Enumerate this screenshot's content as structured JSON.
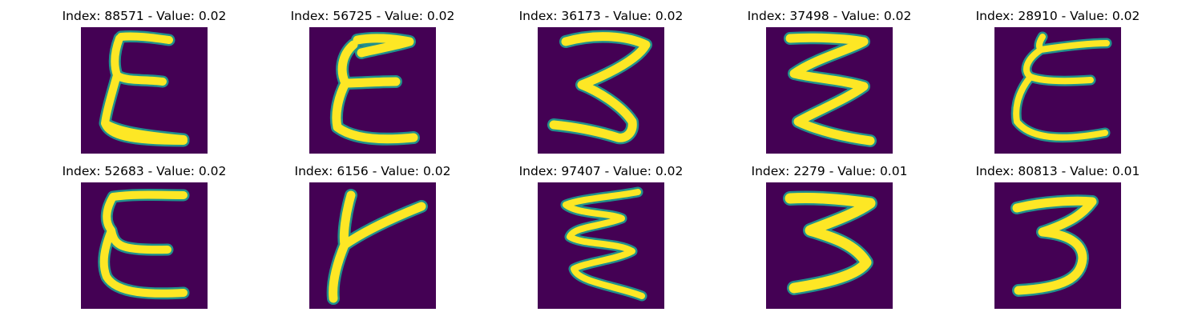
{
  "background_color": "#440154",
  "stroke_color": "#fde725",
  "panels": [
    {
      "title": "Index: 88571 - Value: 0.02",
      "glyph": "E-like handwritten character"
    },
    {
      "title": "Index: 56725 - Value: 0.02",
      "glyph": "E-like handwritten character"
    },
    {
      "title": "Index: 36173 - Value: 0.02",
      "glyph": "3-like handwritten character"
    },
    {
      "title": "Index: 37498 - Value: 0.02",
      "glyph": "3-like handwritten character"
    },
    {
      "title": "Index: 28910 - Value: 0.02",
      "glyph": "E-like handwritten character"
    },
    {
      "title": "Index: 52683 - Value: 0.02",
      "glyph": "E-like handwritten character"
    },
    {
      "title": "Index: 6156 - Value: 0.02",
      "glyph": "Y-like handwritten character"
    },
    {
      "title": "Index: 97407 - Value: 0.02",
      "glyph": "3-like handwritten character"
    },
    {
      "title": "Index: 2279 - Value: 0.01",
      "glyph": "3-like handwritten character"
    },
    {
      "title": "Index: 80813 - Value: 0.01",
      "glyph": "3-like handwritten character"
    }
  ]
}
